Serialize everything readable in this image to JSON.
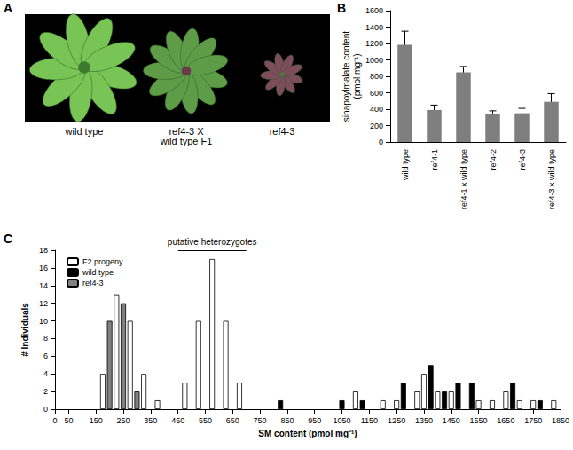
{
  "panel_labels": [
    "A",
    "B",
    "C"
  ],
  "panel_a": {
    "captions": [
      "wild type",
      "ref4-3 X\nwild type F1",
      "ref4-3"
    ]
  },
  "chart_data": [
    {
      "type": "bar",
      "y_label": "sinapoylmalate content\n(pmol mg⁻¹)",
      "categories": [
        "wild type",
        "ref4-1",
        "ref4-1 x wild type",
        "ref4-2",
        "ref4-3",
        "ref4-3 x wild type"
      ],
      "values": [
        1185,
        390,
        850,
        340,
        350,
        490
      ],
      "errors": [
        165,
        60,
        70,
        40,
        60,
        100
      ],
      "color": "#7f7f7f",
      "ylim": [
        0,
        1600
      ],
      "yticks": [
        0,
        200,
        400,
        600,
        800,
        1000,
        1200,
        1400,
        1600
      ],
      "grid": false
    },
    {
      "type": "bar",
      "x_label": "SM content (pmol mg⁻¹)",
      "y_label": "# Individuals",
      "annotations": [
        {
          "text": "putative heterozygotes",
          "x_range": [
            450,
            700
          ]
        }
      ],
      "series": [
        {
          "name": "F2 progeny",
          "color": "#ffffff",
          "x": [
            175,
            225,
            275,
            325,
            375,
            475,
            525,
            575,
            625,
            675,
            1100,
            1200,
            1250,
            1325,
            1350,
            1400,
            1450,
            1550,
            1600,
            1650,
            1700,
            1750,
            1825
          ],
          "values": [
            4,
            13,
            10,
            4,
            1,
            3,
            10,
            17,
            10,
            3,
            2,
            1,
            1,
            2,
            4,
            2,
            2,
            1,
            1,
            2,
            1,
            1,
            1
          ]
        },
        {
          "name": "wild type",
          "color": "#000000",
          "x": [
            825,
            1050,
            1125,
            1275,
            1375,
            1425,
            1475,
            1525,
            1675,
            1775
          ],
          "values": [
            1,
            1,
            1,
            3,
            5,
            2,
            3,
            3,
            3,
            1
          ]
        },
        {
          "name": "ref4-3",
          "color": "#808080",
          "x": [
            200,
            250,
            300
          ],
          "values": [
            10,
            12,
            2
          ]
        }
      ],
      "xlim": [
        0,
        1850
      ],
      "xticks": [
        0,
        50,
        150,
        250,
        350,
        450,
        550,
        650,
        750,
        850,
        950,
        1050,
        1150,
        1250,
        1350,
        1450,
        1550,
        1650,
        1750,
        1850
      ],
      "ylim": [
        0,
        18
      ],
      "yticks": [
        0,
        2,
        4,
        6,
        8,
        10,
        12,
        14,
        16,
        18
      ],
      "legend": "upper left",
      "grid": false
    }
  ]
}
